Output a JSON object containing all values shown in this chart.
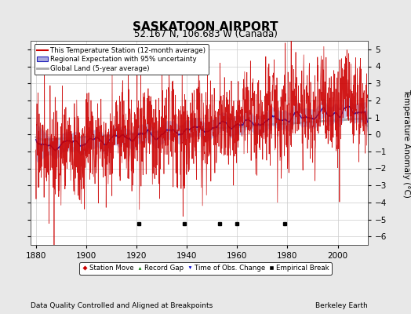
{
  "title": "SASKATOON AIRPORT",
  "subtitle": "52.167 N, 106.683 W (Canada)",
  "xlabel_note": "Data Quality Controlled and Aligned at Breakpoints",
  "credit": "Berkeley Earth",
  "ylabel": "Temperature Anomaly (°C)",
  "xlim": [
    1878,
    2012
  ],
  "ylim": [
    -6.5,
    5.5
  ],
  "yticks": [
    -6,
    -5,
    -4,
    -3,
    -2,
    -1,
    0,
    1,
    2,
    3,
    4,
    5
  ],
  "xticks": [
    1880,
    1900,
    1920,
    1940,
    1960,
    1980,
    2000
  ],
  "bg_color": "#e8e8e8",
  "plot_bg_color": "#ffffff",
  "station_color": "#cc0000",
  "regional_color": "#2222bb",
  "regional_fill_color": "#aaaadd",
  "global_color": "#aaaaaa",
  "break_years": [
    1921,
    1939,
    1953,
    1960,
    1979
  ],
  "seed": 17
}
